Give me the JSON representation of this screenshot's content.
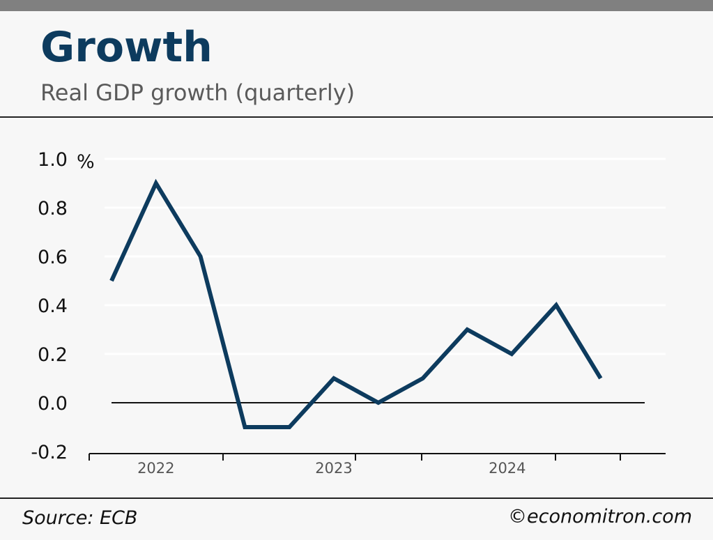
{
  "header": {
    "title": "Growth",
    "subtitle": "Real GDP growth (quarterly)"
  },
  "footer": {
    "source": "Source: ECB",
    "credit": "©economitron.com"
  },
  "colors": {
    "line": "#0d3b5e",
    "title": "#0d3b5e",
    "gridline": "#ffffff",
    "zero_line": "#111111"
  },
  "chart_data": {
    "type": "line",
    "title": "Growth",
    "subtitle": "Real GDP growth (quarterly)",
    "xlabel": "",
    "ylabel": "",
    "y_unit": "%",
    "ylim": [
      -0.2,
      1.0
    ],
    "yticks": [
      -0.2,
      0.0,
      0.2,
      0.4,
      0.6,
      0.8,
      1.0
    ],
    "ytick_labels": [
      "-0.2",
      "0.0",
      "0.2",
      "0.4",
      "0.6",
      "0.8",
      "1.0"
    ],
    "x_year_labels": [
      {
        "label": "2022",
        "q_index": 1.0
      },
      {
        "label": "2023",
        "q_index": 5.0
      },
      {
        "label": "2024",
        "q_index": 8.9
      }
    ],
    "series": [
      {
        "name": "Real GDP growth (quarterly)",
        "values": [
          0.5,
          0.9,
          0.6,
          -0.1,
          -0.1,
          0.1,
          0.0,
          0.1,
          0.3,
          0.2,
          0.4,
          0.1
        ]
      }
    ],
    "grid": true,
    "legend": "none"
  }
}
